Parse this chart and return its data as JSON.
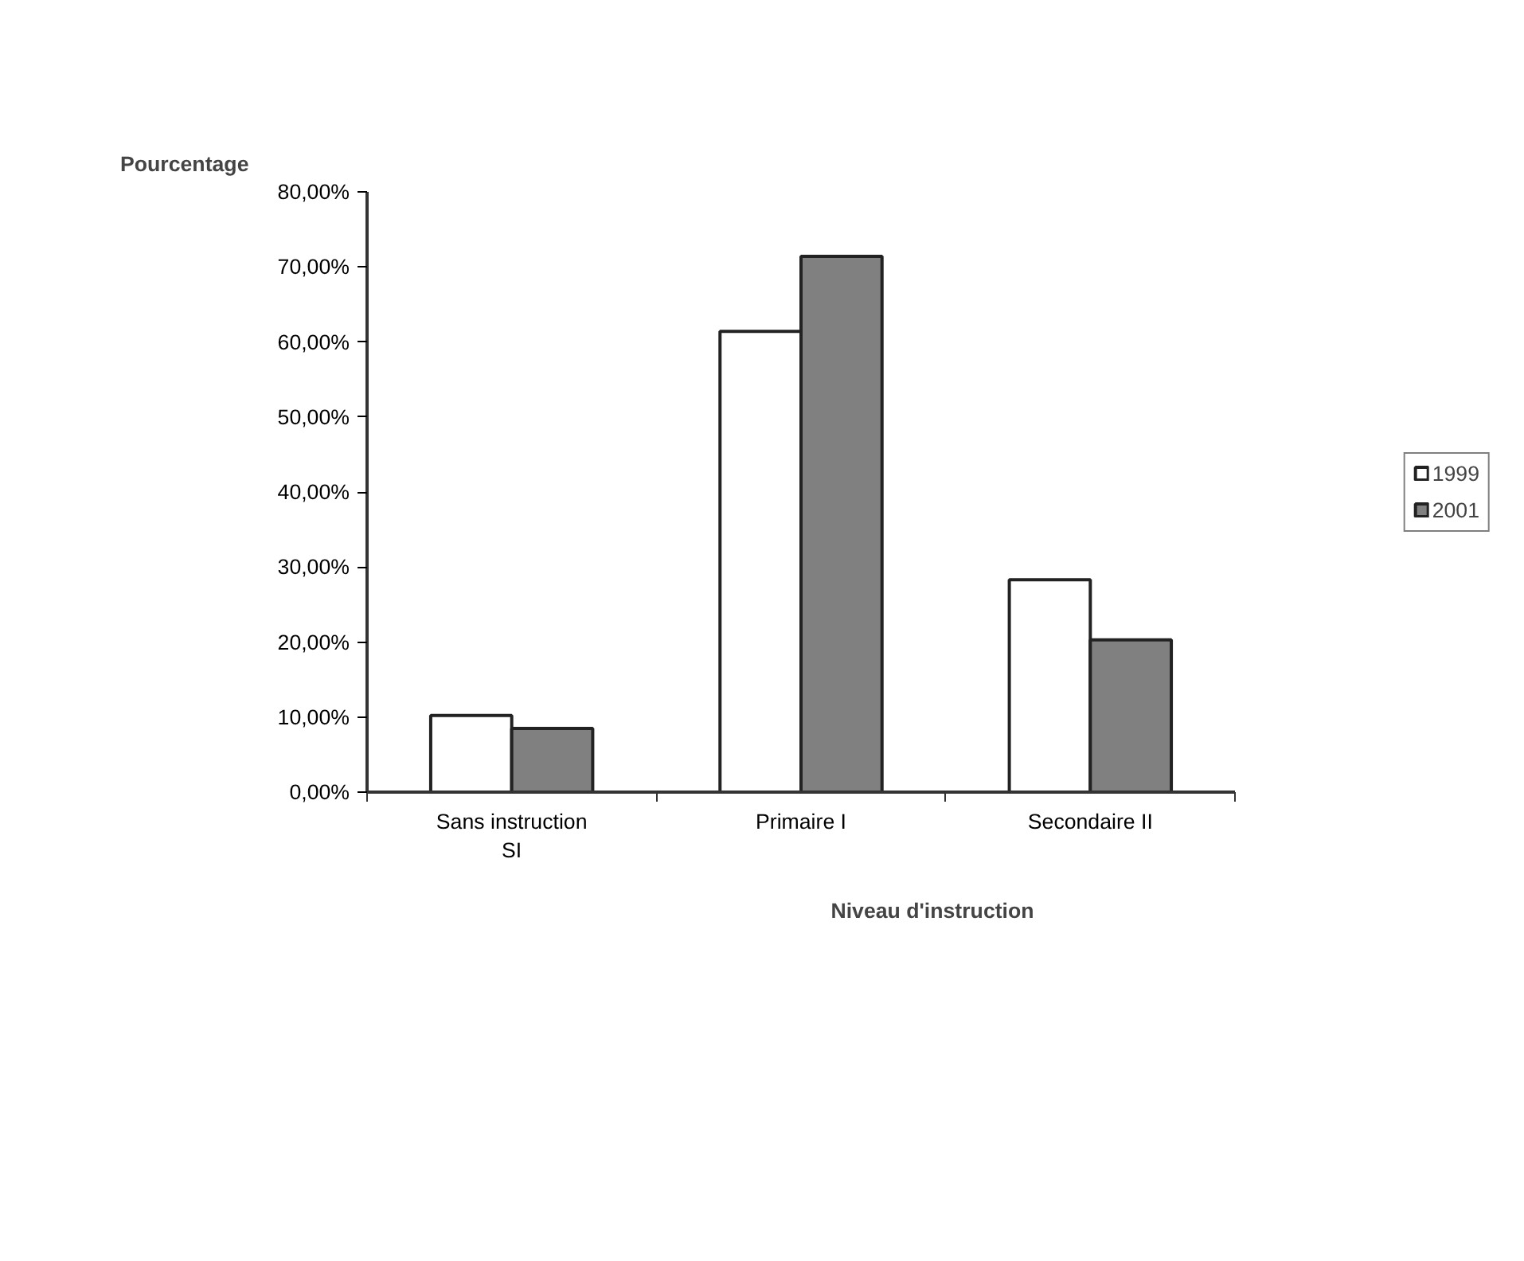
{
  "chart_data": {
    "type": "bar",
    "xlabel": "Niveau d'instruction",
    "ylabel": "Pourcentage",
    "categories": [
      "Sans instruction\nSI",
      "Primaire I",
      "Secondaire II"
    ],
    "series": [
      {
        "name": "1999",
        "color": "#ffffff",
        "values": [
          10.2,
          61.4,
          28.3
        ]
      },
      {
        "name": "2001",
        "color": "#808080",
        "values": [
          8.5,
          71.4,
          20.3
        ]
      }
    ],
    "ylim": [
      0,
      80
    ],
    "yticks": [
      {
        "value": 0,
        "label": "0,00%"
      },
      {
        "value": 10,
        "label": "10,00%"
      },
      {
        "value": 20,
        "label": "20,00%"
      },
      {
        "value": 30,
        "label": "30,00%"
      },
      {
        "value": 40,
        "label": "40,00%"
      },
      {
        "value": 50,
        "label": "50,00%"
      },
      {
        "value": 60,
        "label": "60,00%"
      },
      {
        "value": 70,
        "label": "70,00%"
      },
      {
        "value": 80,
        "label": "80,00%"
      }
    ],
    "grid": false,
    "legend": "right"
  }
}
